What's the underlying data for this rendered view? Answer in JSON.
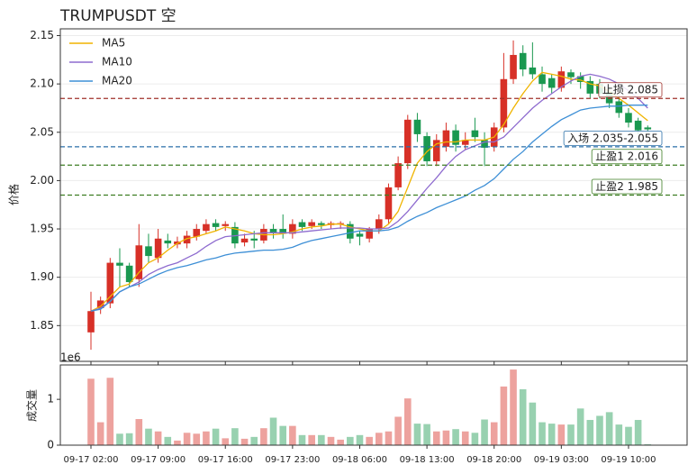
{
  "chart_data": [
    {
      "type": "candlestick",
      "title": "TRUMPUSDT 空",
      "ylabel": "价格",
      "x": [
        "09-17 02:00",
        "09-17 03:00",
        "09-17 04:00",
        "09-17 05:00",
        "09-17 06:00",
        "09-17 07:00",
        "09-17 08:00",
        "09-17 09:00",
        "09-17 10:00",
        "09-17 11:00",
        "09-17 12:00",
        "09-17 13:00",
        "09-17 14:00",
        "09-17 15:00",
        "09-17 16:00",
        "09-17 17:00",
        "09-17 18:00",
        "09-17 19:00",
        "09-17 20:00",
        "09-17 21:00",
        "09-17 22:00",
        "09-17 23:00",
        "09-18 00:00",
        "09-18 01:00",
        "09-18 02:00",
        "09-18 03:00",
        "09-18 04:00",
        "09-18 05:00",
        "09-18 06:00",
        "09-18 07:00",
        "09-18 08:00",
        "09-18 09:00",
        "09-18 10:00",
        "09-18 11:00",
        "09-18 12:00",
        "09-18 13:00",
        "09-18 14:00",
        "09-18 15:00",
        "09-18 16:00",
        "09-18 17:00",
        "09-18 18:00",
        "09-18 19:00",
        "09-18 20:00",
        "09-18 21:00",
        "09-18 22:00",
        "09-18 23:00",
        "09-19 00:00",
        "09-19 01:00",
        "09-19 02:00",
        "09-19 03:00",
        "09-19 04:00",
        "09-19 05:00",
        "09-19 06:00",
        "09-19 07:00",
        "09-19 08:00",
        "09-19 09:00",
        "09-19 10:00",
        "09-19 11:00",
        "09-19 12:00"
      ],
      "open": [
        1.843,
        1.868,
        1.873,
        1.915,
        1.912,
        1.898,
        1.932,
        1.92,
        1.938,
        1.934,
        1.935,
        1.942,
        1.948,
        1.956,
        1.953,
        1.952,
        1.936,
        1.94,
        1.938,
        1.95,
        1.95,
        1.945,
        1.957,
        1.953,
        1.956,
        1.954,
        1.955,
        1.955,
        1.945,
        1.94,
        1.95,
        1.96,
        1.993,
        2.018,
        2.063,
        2.046,
        2.02,
        2.035,
        2.052,
        2.037,
        2.052,
        2.042,
        2.035,
        2.055,
        2.105,
        2.132,
        2.117,
        2.11,
        2.106,
        2.096,
        2.112,
        2.108,
        2.103,
        2.1,
        2.092,
        2.082,
        2.07,
        2.062,
        2.055
      ],
      "high": [
        1.885,
        1.88,
        1.92,
        1.93,
        1.915,
        1.955,
        1.945,
        1.95,
        1.945,
        1.942,
        1.948,
        1.955,
        1.96,
        1.96,
        1.958,
        1.957,
        1.945,
        1.948,
        1.955,
        1.955,
        1.965,
        1.96,
        1.96,
        1.96,
        1.958,
        1.958,
        1.958,
        1.958,
        1.948,
        1.952,
        1.965,
        1.997,
        2.025,
        2.068,
        2.07,
        2.05,
        2.048,
        2.06,
        2.058,
        2.05,
        2.065,
        2.05,
        2.06,
        2.132,
        2.145,
        2.14,
        2.143,
        2.118,
        2.11,
        2.118,
        2.115,
        2.112,
        2.108,
        2.105,
        2.098,
        2.088,
        2.075,
        2.065,
        2.057
      ],
      "low": [
        1.825,
        1.862,
        1.868,
        1.89,
        1.89,
        1.89,
        1.915,
        1.915,
        1.93,
        1.93,
        1.93,
        1.938,
        1.945,
        1.948,
        1.948,
        1.93,
        1.932,
        1.93,
        1.935,
        1.94,
        1.94,
        1.94,
        1.948,
        1.95,
        1.95,
        1.95,
        1.95,
        1.935,
        1.933,
        1.936,
        1.945,
        1.955,
        1.99,
        2.012,
        2.04,
        2.015,
        2.015,
        2.03,
        2.03,
        2.032,
        2.04,
        2.015,
        2.03,
        2.05,
        2.1,
        2.108,
        2.105,
        2.092,
        2.09,
        2.092,
        2.1,
        2.095,
        2.085,
        2.085,
        2.075,
        2.065,
        2.055,
        2.048,
        2.05
      ],
      "close": [
        1.865,
        1.876,
        1.915,
        1.912,
        1.895,
        1.933,
        1.922,
        1.94,
        1.935,
        1.937,
        1.943,
        1.95,
        1.955,
        1.952,
        1.955,
        1.935,
        1.94,
        1.938,
        1.95,
        1.946,
        1.945,
        1.955,
        1.952,
        1.957,
        1.954,
        1.956,
        1.956,
        1.94,
        1.942,
        1.95,
        1.96,
        1.993,
        2.018,
        2.063,
        2.048,
        2.02,
        2.042,
        2.052,
        2.037,
        2.042,
        2.045,
        2.034,
        2.055,
        2.105,
        2.13,
        2.115,
        2.11,
        2.1,
        2.096,
        2.113,
        2.107,
        2.102,
        2.09,
        2.09,
        2.08,
        2.07,
        2.06,
        2.052,
        2.053
      ],
      "up_color": "#d73027",
      "down_color": "#1a9850",
      "series": [
        {
          "name": "MA5",
          "color": "#f0b400",
          "values": [
            1.865,
            1.87,
            1.88,
            1.89,
            1.893,
            1.905,
            1.915,
            1.92,
            1.928,
            1.935,
            1.94,
            1.942,
            1.945,
            1.948,
            1.952,
            1.95,
            1.948,
            1.945,
            1.944,
            1.944,
            1.945,
            1.947,
            1.95,
            1.952,
            1.953,
            1.955,
            1.955,
            1.952,
            1.95,
            1.948,
            1.948,
            1.955,
            1.968,
            1.993,
            2.018,
            2.03,
            2.038,
            2.04,
            2.04,
            2.042,
            2.042,
            2.042,
            2.045,
            2.058,
            2.075,
            2.09,
            2.103,
            2.112,
            2.11,
            2.108,
            2.105,
            2.104,
            2.1,
            2.098,
            2.092,
            2.085,
            2.078,
            2.07,
            2.062
          ]
        },
        {
          "name": "MA10",
          "color": "#8e6bcf",
          "values": [
            1.865,
            1.868,
            1.875,
            1.885,
            1.89,
            1.895,
            1.903,
            1.908,
            1.912,
            1.915,
            1.92,
            1.925,
            1.932,
            1.938,
            1.942,
            1.943,
            1.944,
            1.945,
            1.946,
            1.946,
            1.946,
            1.946,
            1.947,
            1.948,
            1.949,
            1.95,
            1.951,
            1.951,
            1.951,
            1.95,
            1.95,
            1.951,
            1.958,
            1.968,
            1.98,
            1.992,
            2.003,
            2.015,
            2.025,
            2.032,
            2.036,
            2.04,
            2.04,
            2.045,
            2.055,
            2.065,
            2.075,
            2.083,
            2.09,
            2.097,
            2.103,
            2.108,
            2.11,
            2.108,
            2.105,
            2.1,
            2.093,
            2.085,
            2.075
          ]
        },
        {
          "name": "MA20",
          "color": "#3d8fd6",
          "values": [
            1.865,
            1.867,
            1.875,
            1.885,
            1.89,
            1.893,
            1.898,
            1.903,
            1.907,
            1.91,
            1.912,
            1.915,
            1.918,
            1.92,
            1.923,
            1.925,
            1.926,
            1.927,
            1.928,
            1.928,
            1.929,
            1.931,
            1.935,
            1.938,
            1.94,
            1.942,
            1.944,
            1.946,
            1.948,
            1.948,
            1.948,
            1.949,
            1.952,
            1.958,
            1.963,
            1.967,
            1.972,
            1.976,
            1.98,
            1.984,
            1.99,
            1.995,
            2.002,
            2.012,
            2.022,
            2.03,
            2.04,
            2.048,
            2.056,
            2.063,
            2.068,
            2.073,
            2.075,
            2.076,
            2.077,
            2.077,
            2.078,
            2.078,
            2.078
          ]
        }
      ],
      "legend": "upper left",
      "hlines": [
        {
          "value": 2.085,
          "label": "止损 2.085",
          "color": "#a0302a"
        },
        {
          "value": 2.035,
          "label": "入场 2.035-2.055",
          "color": "#2a6fa8"
        },
        {
          "value": 2.016,
          "label": "止盈1 2.016",
          "color": "#3c7d22"
        },
        {
          "value": 1.985,
          "label": "止盈2 1.985",
          "color": "#3c7d22"
        }
      ],
      "ylim": [
        1.813,
        2.157
      ],
      "yticks": [
        1.85,
        {
          "value": 1.9,
          "label": "1.90"
        },
        1.95,
        {
          "value": 2.0,
          "label": "2.00"
        },
        2.05,
        {
          "value": 2.1,
          "label": "2.10"
        },
        2.15
      ],
      "grid": true
    },
    {
      "type": "bar",
      "ylabel": "成交量",
      "offset_label": "1e6",
      "values": [
        1.45,
        0.5,
        1.47,
        0.25,
        0.26,
        0.57,
        0.36,
        0.3,
        0.18,
        0.1,
        0.27,
        0.25,
        0.3,
        0.36,
        0.15,
        0.37,
        0.14,
        0.18,
        0.37,
        0.6,
        0.42,
        0.42,
        0.22,
        0.22,
        0.22,
        0.18,
        0.12,
        0.18,
        0.22,
        0.18,
        0.27,
        0.3,
        0.62,
        1.02,
        0.47,
        0.46,
        0.3,
        0.32,
        0.35,
        0.3,
        0.27,
        0.56,
        0.5,
        1.28,
        1.65,
        1.22,
        0.93,
        0.5,
        0.47,
        0.45,
        0.45,
        0.8,
        0.55,
        0.64,
        0.72,
        0.45,
        0.4,
        0.55,
        0.02
      ],
      "ylim": [
        0,
        1.75
      ],
      "yticks": [
        0,
        1
      ],
      "xticks": [
        "09-17 02:00",
        "09-17 09:00",
        "09-17 16:00",
        "09-17 23:00",
        "09-18 06:00",
        "09-18 13:00",
        "09-18 20:00",
        "09-19 03:00",
        "09-19 10:00"
      ]
    }
  ]
}
